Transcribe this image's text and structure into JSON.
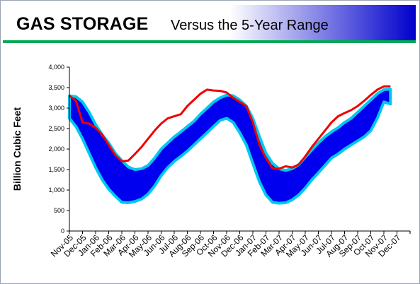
{
  "header": {
    "title": "GAS STORAGE",
    "subtitle": "Versus the 5-Year Range"
  },
  "colors": {
    "band_fill": "#0000ee",
    "band_edge": "#00c8f0",
    "current_line": "#ee0000",
    "header_gradient_start": "#ffffff",
    "header_gradient_end": "#0000cc",
    "header_rule": "#00aa55"
  },
  "chart_data": {
    "type": "area",
    "title": "GAS STORAGE",
    "subtitle": "Versus the 5-Year Range",
    "ylabel": "Billion Cubic Feet",
    "xlabel": "",
    "ylim": [
      0,
      4000
    ],
    "yticks": [
      0,
      500,
      1000,
      1500,
      2000,
      2500,
      3000,
      3500,
      4000
    ],
    "ytick_labels": [
      "0",
      "500",
      "1,000",
      "1,500",
      "2,000",
      "2,500",
      "3,000",
      "3,500",
      "4,000"
    ],
    "categories": [
      "Nov-05",
      "Dec-05",
      "Jan-06",
      "Feb-06",
      "Mar-06",
      "Apr-06",
      "May-06",
      "Jun-06",
      "Jul-06",
      "Aug-06",
      "Sep-06",
      "Oct-06",
      "Nov-06",
      "Dec-06",
      "Jan-07",
      "Feb-07",
      "Mar-07",
      "Apr-07",
      "May-07",
      "Jun-07",
      "Jul-07",
      "Aug-07",
      "Sep-07",
      "Oct-07",
      "Nov-07",
      "Dec-07"
    ],
    "grid": false,
    "legend": "none",
    "series": [
      {
        "role": "range_max",
        "x": [
          0,
          0.5,
          1,
          1.5,
          2,
          2.5,
          3,
          3.5,
          4,
          4.5,
          5,
          5.5,
          6,
          6.5,
          7,
          7.5,
          8,
          8.5,
          9,
          9.5,
          10,
          10.5,
          11,
          11.5,
          12,
          12.5,
          13,
          13.5,
          14,
          14.5,
          15,
          15.5,
          16,
          16.5,
          17,
          17.5,
          18,
          18.5,
          19,
          19.5,
          20,
          20.5,
          21,
          21.5,
          22,
          22.5,
          23,
          23.5,
          24,
          24.5
        ],
        "values": [
          3300,
          3280,
          3150,
          2900,
          2600,
          2350,
          2150,
          1900,
          1720,
          1560,
          1500,
          1520,
          1600,
          1780,
          2000,
          2150,
          2300,
          2420,
          2550,
          2680,
          2850,
          3000,
          3150,
          3250,
          3320,
          3300,
          3200,
          3050,
          2750,
          2300,
          1900,
          1650,
          1520,
          1480,
          1520,
          1620,
          1800,
          1980,
          2150,
          2300,
          2420,
          2520,
          2650,
          2750,
          2900,
          3050,
          3200,
          3350,
          3450,
          3460
        ]
      },
      {
        "role": "range_min",
        "x": [
          0,
          0.5,
          1,
          1.5,
          2,
          2.5,
          3,
          3.5,
          4,
          4.5,
          5,
          5.5,
          6,
          6.5,
          7,
          7.5,
          8,
          8.5,
          9,
          9.5,
          10,
          10.5,
          11,
          11.5,
          12,
          12.5,
          13,
          13.5,
          14,
          14.5,
          15,
          15.5,
          16,
          16.5,
          17,
          17.5,
          18,
          18.5,
          19,
          19.5,
          20,
          20.5,
          21,
          21.5,
          22,
          22.5,
          23,
          23.5,
          24,
          24.5
        ],
        "values": [
          2750,
          2550,
          2250,
          1900,
          1550,
          1250,
          1020,
          850,
          700,
          690,
          720,
          780,
          900,
          1100,
          1350,
          1550,
          1700,
          1820,
          1950,
          2100,
          2250,
          2400,
          2550,
          2700,
          2750,
          2650,
          2400,
          2100,
          1650,
          1200,
          880,
          700,
          680,
          690,
          760,
          880,
          1050,
          1250,
          1420,
          1600,
          1780,
          1880,
          2000,
          2100,
          2200,
          2300,
          2450,
          2750,
          3150,
          3100
        ]
      },
      {
        "name": "",
        "role": "current",
        "x": [
          0,
          0.5,
          1,
          1.5,
          2,
          2.5,
          3,
          3.5,
          4,
          4.5,
          5,
          5.5,
          6,
          6.5,
          7,
          7.5,
          8,
          8.5,
          9,
          9.5,
          10,
          10.5,
          11,
          11.5,
          12,
          12.5,
          13,
          13.5,
          14,
          14.5,
          15,
          15.5,
          16,
          16.5,
          17,
          17.5,
          18,
          18.5,
          19,
          19.5,
          20,
          20.5,
          21,
          21.5,
          22,
          22.5,
          23,
          23.5,
          24,
          24.5
        ],
        "values": [
          3300,
          3180,
          2650,
          2620,
          2520,
          2350,
          2100,
          1850,
          1700,
          1720,
          1880,
          2050,
          2250,
          2450,
          2620,
          2750,
          2800,
          2850,
          3050,
          3200,
          3350,
          3450,
          3430,
          3420,
          3380,
          3250,
          3150,
          3050,
          2650,
          2100,
          1780,
          1530,
          1520,
          1580,
          1550,
          1620,
          1820,
          2050,
          2250,
          2450,
          2650,
          2800,
          2880,
          2950,
          3050,
          3180,
          3320,
          3450,
          3530,
          3530
        ]
      }
    ]
  }
}
